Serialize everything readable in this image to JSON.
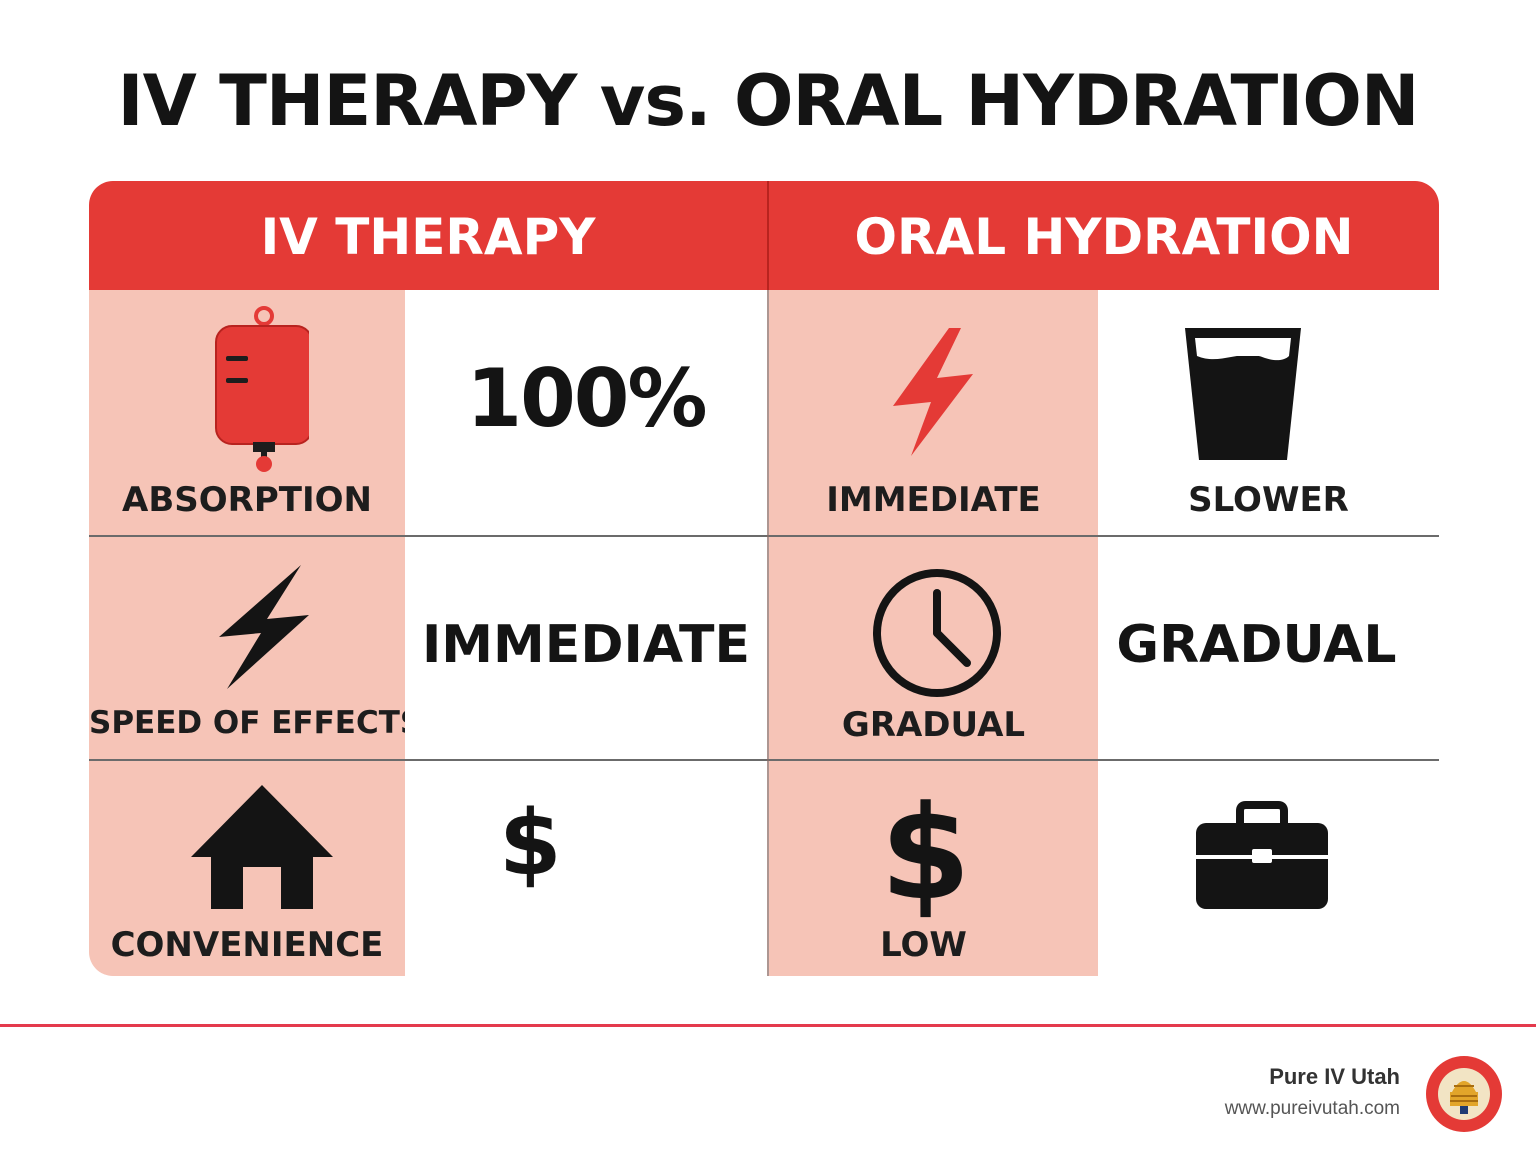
{
  "title": "IV THERAPY vs. ORAL HYDRATION",
  "columns": {
    "left": "IV THERAPY",
    "right": "ORAL HYDRATION"
  },
  "rows": [
    {
      "iv_label": "ABSORPTION",
      "iv_icon": "iv-bag-icon",
      "iv_value": "100%",
      "oral_label": "IMMEDIATE",
      "oral_icon": "lightning-bolt-icon",
      "oral_value": "SLOWER",
      "oral_value_icon": "water-glass-icon"
    },
    {
      "iv_label": "SPEED OF EFFECTS",
      "iv_icon": "lightning-bolt-icon",
      "iv_value": "IMMEDIATE",
      "oral_label": "GRADUAL",
      "oral_icon": "clock-icon",
      "oral_value": "GRADUAL"
    },
    {
      "iv_label": "CONVENIENCE",
      "iv_icon": "house-icon",
      "iv_value": "$",
      "oral_label": "LOW",
      "oral_value_icon": "briefcase-icon",
      "oral_big_symbol": "$"
    }
  ],
  "footer": {
    "brand": "Pure IV Utah",
    "url": "www.pureivutah.com",
    "logo_icon": "pure-iv-utah-logo-icon"
  },
  "colors": {
    "accent_red": "#e43a36",
    "pink_cell": "#f6c4b7",
    "text_dark": "#141414"
  }
}
